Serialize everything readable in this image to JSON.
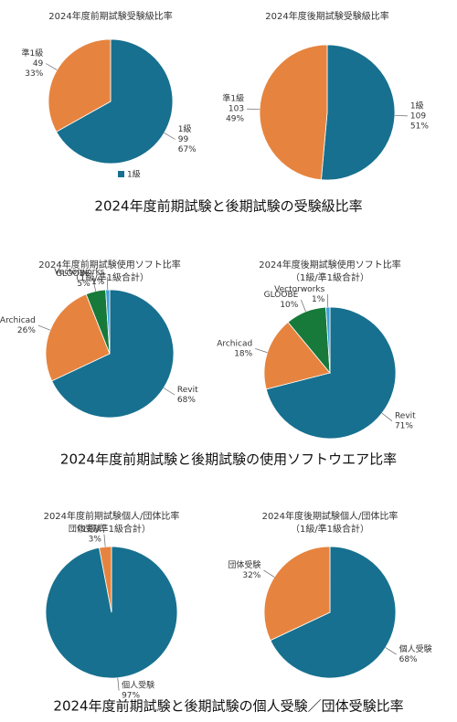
{
  "chart_data": [
    {
      "type": "pie",
      "title": "2024年度前期試験受験級比率",
      "categories": [
        "1級",
        "準1級"
      ],
      "values": [
        99,
        49
      ],
      "percent_labels": [
        "67%",
        "33%"
      ],
      "colors": [
        "#17708f",
        "#e6843f"
      ],
      "legend": [
        {
          "name": "1級",
          "color": "#17708f"
        }
      ]
    },
    {
      "type": "pie",
      "title": "2024年度後期試験受験級比率",
      "categories": [
        "1級",
        "準1級"
      ],
      "values": [
        109,
        103
      ],
      "percent_labels": [
        "51%",
        "49%"
      ],
      "colors": [
        "#17708f",
        "#e6843f"
      ]
    },
    {
      "type": "pie",
      "title": "2024年度前期試験使用ソフト比率",
      "subtitle": "（1級/準1級合計）",
      "categories": [
        "Revit",
        "Archicad",
        "GLOOBE",
        "Vectorworks"
      ],
      "values": [
        68,
        26,
        5,
        1
      ],
      "value_labels": [
        "68%",
        "26%",
        "5%",
        "1%"
      ],
      "colors": [
        "#17708f",
        "#e6843f",
        "#17793a",
        "#3aa0d8"
      ]
    },
    {
      "type": "pie",
      "title": "2024年度後期試験使用ソフト比率",
      "subtitle": "（1級/準1級合計）",
      "categories": [
        "Revit",
        "Archicad",
        "GLOOBE",
        "Vectorworks"
      ],
      "values": [
        71,
        18,
        10,
        1
      ],
      "value_labels": [
        "71%",
        "18%",
        "10%",
        "1%"
      ],
      "colors": [
        "#17708f",
        "#e6843f",
        "#17793a",
        "#3aa0d8"
      ]
    },
    {
      "type": "pie",
      "title": "2024年度前期試験個人/団体比率",
      "subtitle": "（1級/準1級合計）",
      "categories": [
        "個人受験",
        "団体受験"
      ],
      "values": [
        97,
        3
      ],
      "value_labels": [
        "97%",
        "3%"
      ],
      "colors": [
        "#17708f",
        "#e6843f"
      ]
    },
    {
      "type": "pie",
      "title": "2024年度後期試験個人/団体比率",
      "subtitle": "（1級/準1級合計）",
      "categories": [
        "個人受験",
        "団体受験"
      ],
      "values": [
        68,
        32
      ],
      "value_labels": [
        "68%",
        "32%"
      ],
      "colors": [
        "#17708f",
        "#e6843f"
      ]
    }
  ],
  "captions": [
    "2024年度前期試験と後期試験の受験級比率",
    "2024年度前期試験と後期試験の使用ソフトウエア比率",
    "2024年度前期試験と後期試験の個人受験／団体受験比率"
  ]
}
